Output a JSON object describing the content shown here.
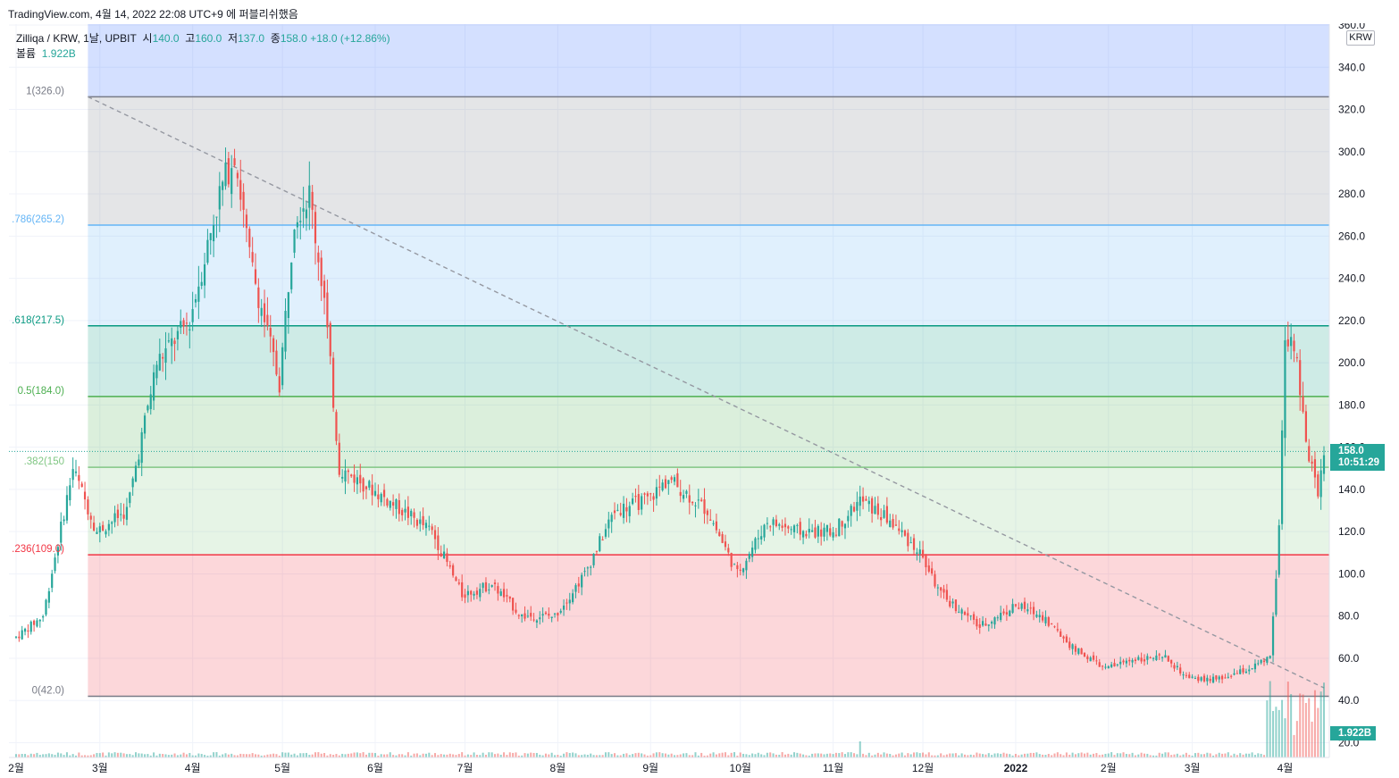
{
  "header": {
    "title_line": "TradingView.com, 4월 14, 2022 22:08 UTC+9 에 퍼블리쉬했음"
  },
  "legend": {
    "symbol": "Zilliqa / KRW, 1날, UPBIT",
    "open_label": "시",
    "open": "140.0",
    "high_label": "고",
    "high": "160.0",
    "low_label": "저",
    "low": "137.0",
    "close_label": "종",
    "close": "158.0",
    "change": "+18.0 (+12.86%)",
    "volume_label": "볼륨",
    "volume": "1.922B"
  },
  "price_axis": {
    "currency": "KRW",
    "last_price": "158.0",
    "countdown": "10:51:29",
    "last_volume": "1.922B"
  },
  "colors": {
    "up": "#26a69a",
    "down": "#ef5350",
    "background": "#ffffff",
    "grid": "#f0f3fa"
  },
  "chart_data": {
    "type": "candlestick",
    "title": "Zilliqa / KRW, 1날, UPBIT",
    "ylabel": "KRW",
    "ylim": [
      10,
      360
    ],
    "y_ticks": [
      20,
      40,
      60,
      80,
      100,
      120,
      140,
      160,
      180,
      200,
      220,
      240,
      260,
      280,
      300,
      320,
      340,
      360
    ],
    "x_ticks": [
      "2월",
      "3월",
      "4월",
      "5월",
      "6월",
      "7월",
      "8월",
      "9월",
      "10월",
      "11월",
      "12월",
      "2022",
      "2월",
      "3월",
      "4월"
    ],
    "grid": true,
    "series": [
      {
        "name": "ZIL/KRW",
        "points": [
          [
            "2021-02-01",
            70
          ],
          [
            "2021-02-10",
            80
          ],
          [
            "2021-02-20",
            150
          ],
          [
            "2021-02-28",
            120
          ],
          [
            "2021-03-10",
            130
          ],
          [
            "2021-03-20",
            200
          ],
          [
            "2021-03-31",
            220
          ],
          [
            "2021-04-10",
            280
          ],
          [
            "2021-04-15",
            300
          ],
          [
            "2021-04-20",
            250
          ],
          [
            "2021-04-30",
            190
          ],
          [
            "2021-05-05",
            270
          ],
          [
            "2021-05-10",
            280
          ],
          [
            "2021-05-15",
            230
          ],
          [
            "2021-05-20",
            150
          ],
          [
            "2021-05-31",
            140
          ],
          [
            "2021-06-10",
            130
          ],
          [
            "2021-06-20",
            120
          ],
          [
            "2021-06-30",
            90
          ],
          [
            "2021-07-10",
            95
          ],
          [
            "2021-07-20",
            80
          ],
          [
            "2021-07-31",
            80
          ],
          [
            "2021-08-10",
            100
          ],
          [
            "2021-08-20",
            130
          ],
          [
            "2021-08-31",
            135
          ],
          [
            "2021-09-07",
            145
          ],
          [
            "2021-09-20",
            130
          ],
          [
            "2021-09-30",
            100
          ],
          [
            "2021-10-10",
            125
          ],
          [
            "2021-10-20",
            120
          ],
          [
            "2021-11-01",
            120
          ],
          [
            "2021-11-10",
            135
          ],
          [
            "2021-11-20",
            125
          ],
          [
            "2021-11-30",
            110
          ],
          [
            "2021-12-07",
            90
          ],
          [
            "2021-12-20",
            75
          ],
          [
            "2022-01-01",
            85
          ],
          [
            "2022-01-10",
            80
          ],
          [
            "2022-01-20",
            65
          ],
          [
            "2022-01-31",
            55
          ],
          [
            "2022-02-10",
            60
          ],
          [
            "2022-02-20",
            60
          ],
          [
            "2022-02-28",
            50
          ],
          [
            "2022-03-10",
            50
          ],
          [
            "2022-03-20",
            55
          ],
          [
            "2022-03-27",
            60
          ],
          [
            "2022-03-30",
            120
          ],
          [
            "2022-04-01",
            215
          ],
          [
            "2022-04-04",
            210
          ],
          [
            "2022-04-08",
            160
          ],
          [
            "2022-04-12",
            140
          ],
          [
            "2022-04-14",
            158
          ]
        ]
      }
    ],
    "fibonacci": {
      "levels": [
        {
          "ratio": "1",
          "price": 326.0,
          "label": "1(326.0)",
          "color": "#787b86"
        },
        {
          "ratio": "0.786",
          "price": 265.2,
          "label": ".786(265.2)",
          "color": "#64b5f6"
        },
        {
          "ratio": "0.618",
          "price": 217.5,
          "label": ".618(217.5)",
          "color": "#089981"
        },
        {
          "ratio": "0.5",
          "price": 184.0,
          "label": "0.5(184.0)",
          "color": "#4caf50"
        },
        {
          "ratio": "0.382",
          "price": 150.5,
          "label": ".382(150",
          "color": "#81c784"
        },
        {
          "ratio": "0.236",
          "price": 109.0,
          "label": ".236(109.0)",
          "color": "#f23645"
        },
        {
          "ratio": "0",
          "price": 42.0,
          "label": "0(42.0)",
          "color": "#787b86"
        }
      ]
    },
    "trendline": {
      "from": [
        "2021-02-25",
        326
      ],
      "to": [
        "2022-04-14",
        46
      ]
    }
  }
}
